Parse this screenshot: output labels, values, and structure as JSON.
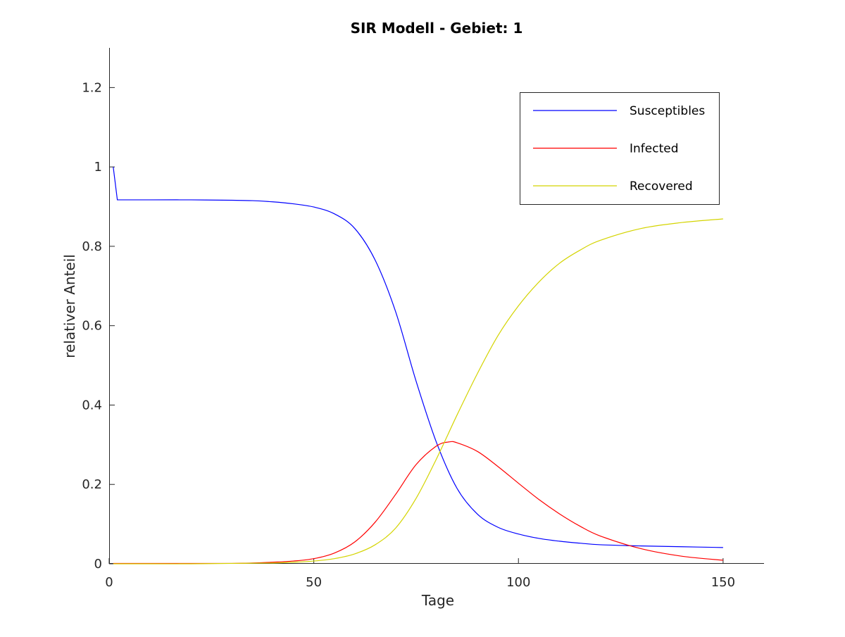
{
  "chart_data": {
    "type": "line",
    "title": "SIR Modell - Gebiet: 1",
    "xlabel": "Tage",
    "ylabel": "relativer Anteil",
    "xlim": [
      0,
      160
    ],
    "ylim": [
      0,
      1.3
    ],
    "xticks": [
      0,
      50,
      100,
      150
    ],
    "xtick_labels": [
      "0",
      "50",
      "100",
      "150"
    ],
    "yticks": [
      0,
      0.2,
      0.4,
      0.6,
      0.8,
      1,
      1.2
    ],
    "ytick_labels": [
      "0",
      "0.2",
      "0.4",
      "0.6",
      "0.8",
      "1",
      "1.2"
    ],
    "grid": false,
    "legend_position": "top-right",
    "series": [
      {
        "name": "Susceptibles",
        "color": "#0000ff",
        "x": [
          1,
          2,
          10,
          20,
          30,
          35,
          40,
          45,
          50,
          55,
          60,
          65,
          70,
          75,
          80,
          85,
          90,
          95,
          100,
          105,
          110,
          115,
          120,
          130,
          140,
          150
        ],
        "y": [
          1.0,
          0.917,
          0.917,
          0.917,
          0.916,
          0.915,
          0.912,
          0.907,
          0.899,
          0.882,
          0.845,
          0.765,
          0.635,
          0.46,
          0.305,
          0.19,
          0.125,
          0.092,
          0.075,
          0.064,
          0.057,
          0.052,
          0.048,
          0.045,
          0.043,
          0.041
        ]
      },
      {
        "name": "Infected",
        "color": "#ff0000",
        "x": [
          1,
          10,
          20,
          30,
          35,
          40,
          45,
          50,
          55,
          60,
          65,
          70,
          75,
          80,
          83,
          85,
          90,
          95,
          100,
          105,
          110,
          115,
          120,
          130,
          140,
          150
        ],
        "y": [
          0.001,
          0.001,
          0.001,
          0.001,
          0.002,
          0.004,
          0.007,
          0.013,
          0.027,
          0.055,
          0.105,
          0.175,
          0.25,
          0.297,
          0.307,
          0.305,
          0.283,
          0.245,
          0.203,
          0.162,
          0.126,
          0.095,
          0.07,
          0.038,
          0.019,
          0.009
        ]
      },
      {
        "name": "Recovered",
        "color": "#d4d400",
        "x": [
          1,
          10,
          20,
          30,
          40,
          45,
          50,
          55,
          60,
          65,
          70,
          75,
          80,
          85,
          90,
          95,
          100,
          105,
          110,
          115,
          120,
          130,
          140,
          150
        ],
        "y": [
          0.0,
          0.0,
          0.0,
          0.001,
          0.002,
          0.004,
          0.007,
          0.013,
          0.025,
          0.048,
          0.09,
          0.165,
          0.265,
          0.375,
          0.48,
          0.575,
          0.65,
          0.71,
          0.757,
          0.79,
          0.815,
          0.845,
          0.86,
          0.869
        ]
      }
    ]
  }
}
